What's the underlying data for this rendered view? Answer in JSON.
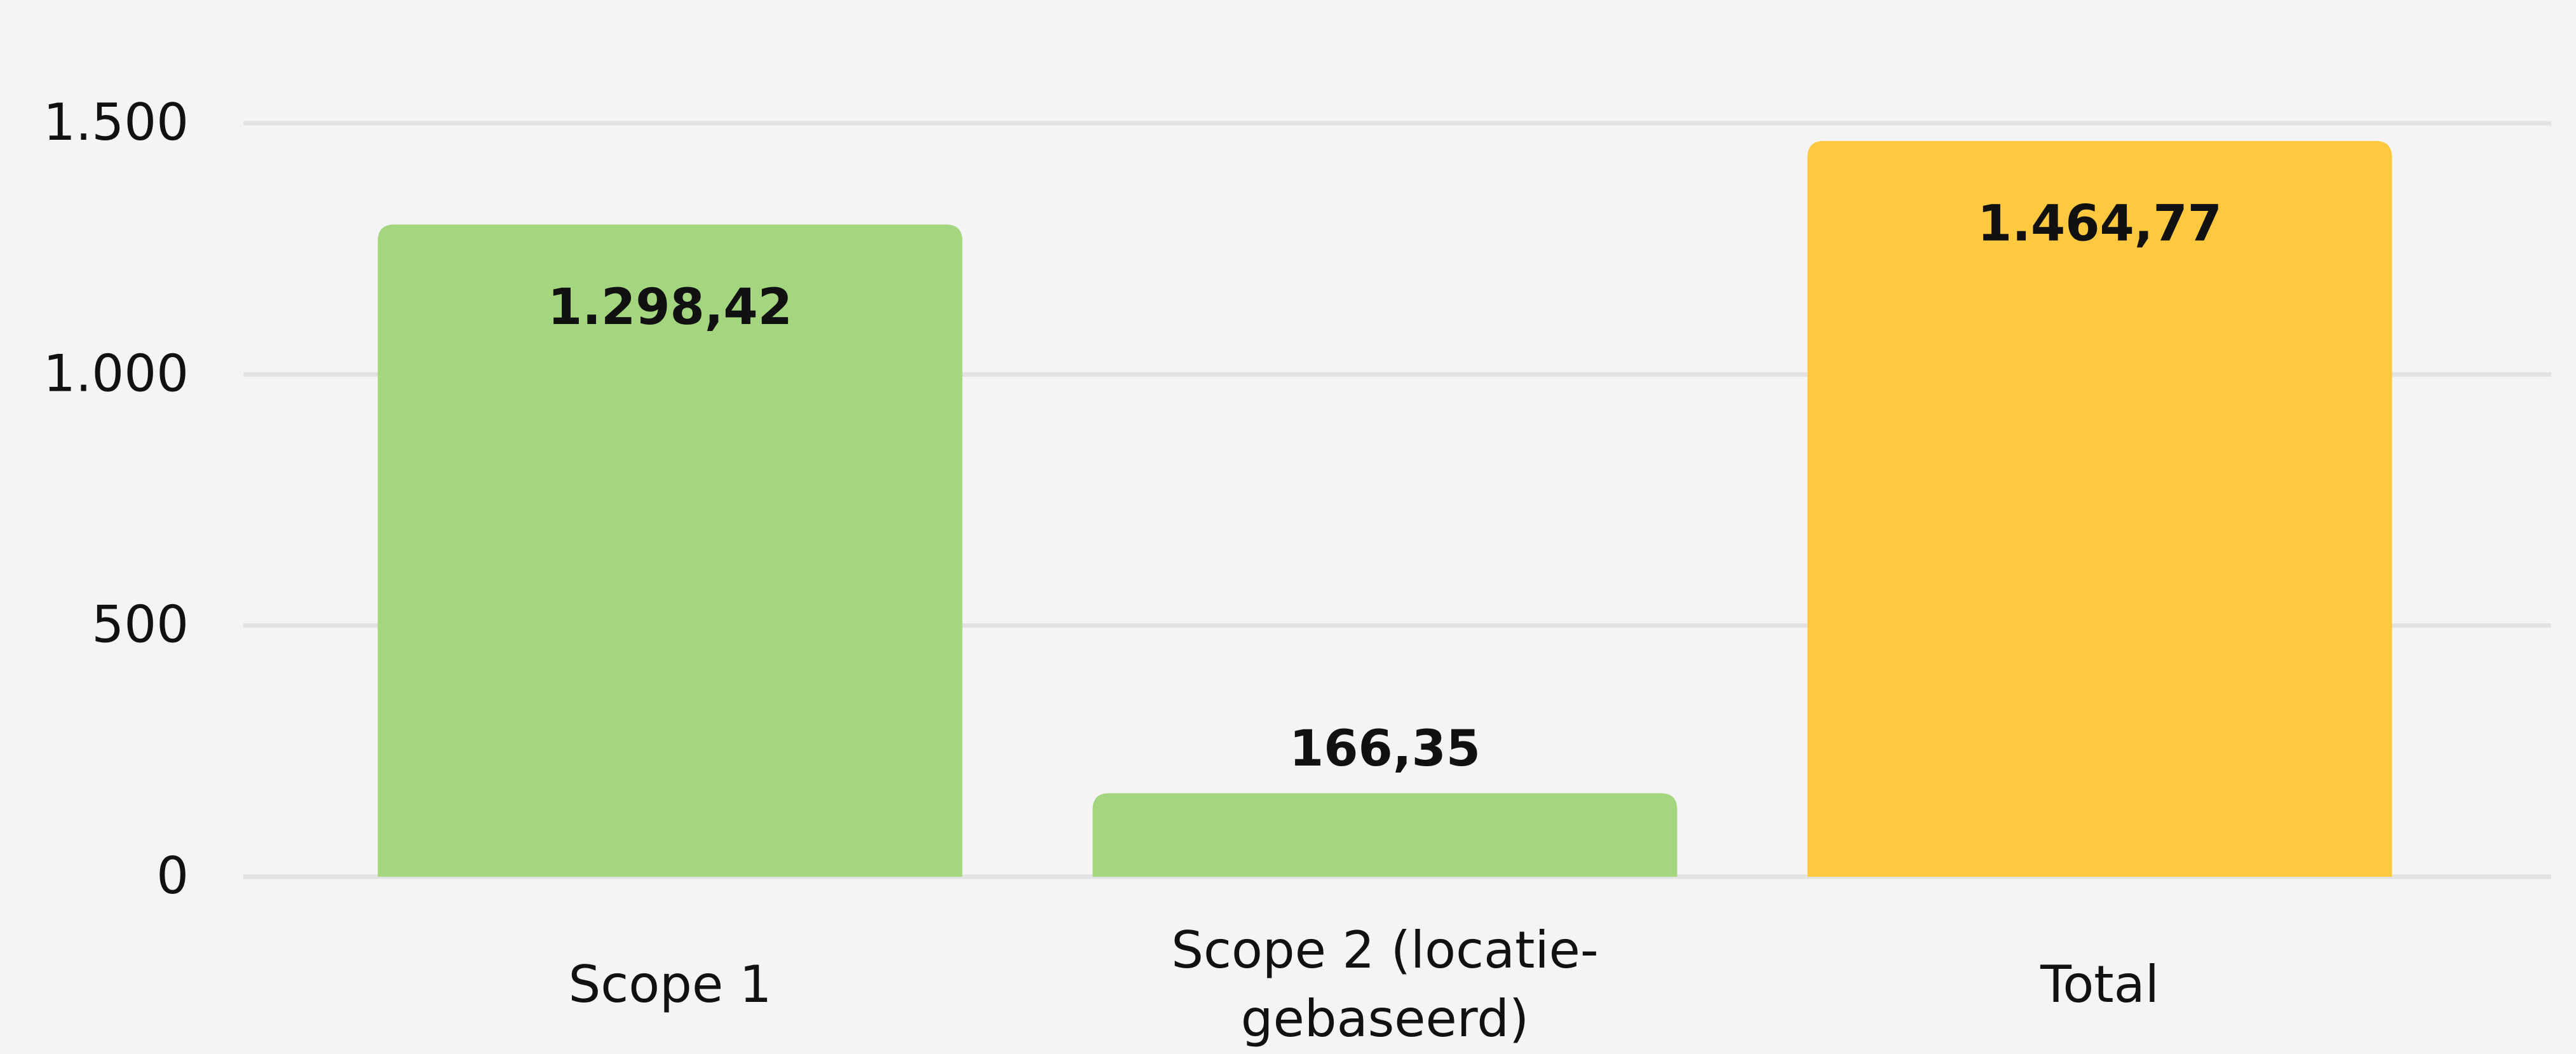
{
  "chart_data": {
    "type": "bar",
    "categories": [
      "Scope 1",
      "Scope 2 (locatie-gebaseerd)",
      "Total"
    ],
    "values": [
      1298.42,
      166.35,
      1464.77
    ],
    "value_labels": [
      "1.298,42",
      "166,35",
      "1.464,77"
    ],
    "colors": [
      "#a3d67f",
      "#a3d67f",
      "#ffc93f"
    ],
    "ylim": [
      0,
      1500
    ],
    "yticks": [
      0,
      500,
      {
        "value": 1000,
        "label": "1.000"
      },
      {
        "value": 1500,
        "label": "1.500"
      }
    ],
    "grid": true
  }
}
